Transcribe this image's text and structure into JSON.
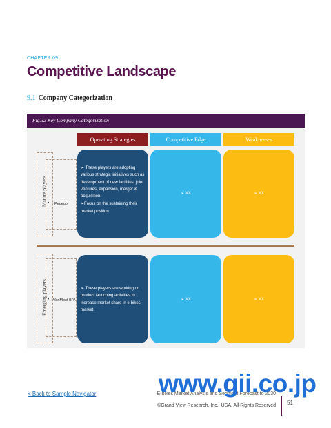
{
  "header": {
    "chapter": "CHAPTER 09",
    "title": "Competitive Landscape",
    "section_number": "9.1",
    "section_title": "Company Categorization"
  },
  "figure": {
    "caption": "Fig.32 Key Company Categorization",
    "columns": [
      "Operating Strategies",
      "Competitive Edge",
      "Weaknesses"
    ],
    "rows": [
      {
        "label": "Mature players",
        "player": "Pedego",
        "strategies": [
          "➢ These players are adopting various strategic initiatives such as development of new facilities, joint ventures, expansion, merger & acquisition.",
          "➢Focus on the sustaining their market position"
        ],
        "edge": "➢ XX",
        "weakness": "➢ XX"
      },
      {
        "label": "Emerging players",
        "player": "VanMoof B.V.",
        "strategies": [
          "➢ These players are working on product launching activities to increase market share in e-bikes market."
        ],
        "edge": "➢ XX",
        "weakness": "➢ XX"
      }
    ],
    "colors": {
      "header_bar": "#4a1753",
      "strategies": "#1f4e79",
      "strategies_head": "#8c1f1f",
      "edge": "#36b7ea",
      "weakness": "#fdbc12"
    }
  },
  "footer": {
    "back_link": "< Back to Sample Navigator",
    "report_title": "E-bikes Market Analysis and Segment Forecast to 2030",
    "copyright": "©Grand View Research, Inc., USA. All Rights Reserved",
    "page_number": "51",
    "watermark": "www.gii.co.jp"
  }
}
